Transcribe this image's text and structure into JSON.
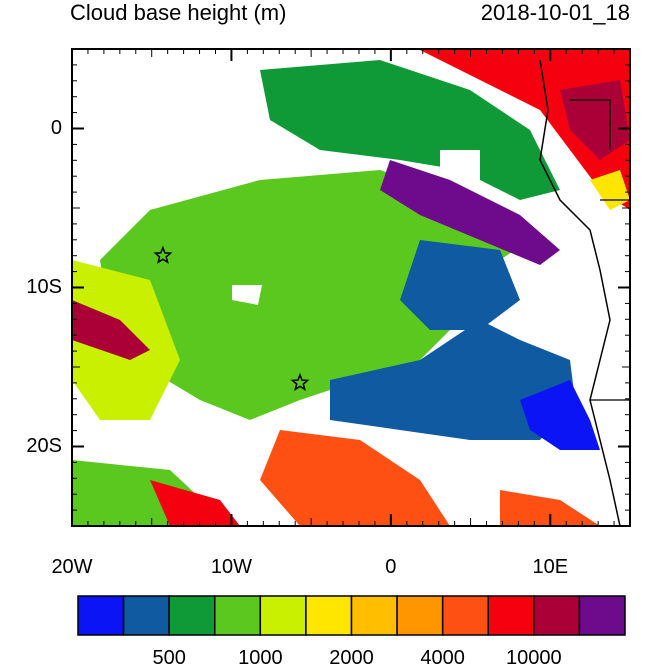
{
  "header": {
    "title": "Cloud base height (m)",
    "timestamp": "2018-10-01_18"
  },
  "map": {
    "projection": "lat-lon",
    "lon_range": [
      -20,
      15
    ],
    "lat_range": [
      -25,
      5
    ],
    "lat_ticks": [
      {
        "value": 0,
        "label": "0"
      },
      {
        "value": -10,
        "label": "10S"
      },
      {
        "value": -20,
        "label": "20S"
      }
    ],
    "lon_ticks": [
      {
        "value": -20,
        "label": "20W"
      },
      {
        "value": -10,
        "label": "10W"
      },
      {
        "value": 0,
        "label": "0"
      },
      {
        "value": 10,
        "label": "10E"
      }
    ],
    "markers": [
      {
        "name": "star",
        "lon": -14.3,
        "lat": -8.0
      },
      {
        "name": "star",
        "lon": -5.7,
        "lat": -16.0
      }
    ]
  },
  "colorbar": {
    "colors": [
      "#0a14f5",
      "#0f5aa0",
      "#0f9a37",
      "#5ac81e",
      "#c8f000",
      "#ffe600",
      "#ffbe00",
      "#ff9600",
      "#ff5014",
      "#f5000f",
      "#aa0037",
      "#6e0a8c"
    ],
    "labels": [
      "500",
      "1000",
      "2000",
      "4000",
      "10000"
    ]
  }
}
